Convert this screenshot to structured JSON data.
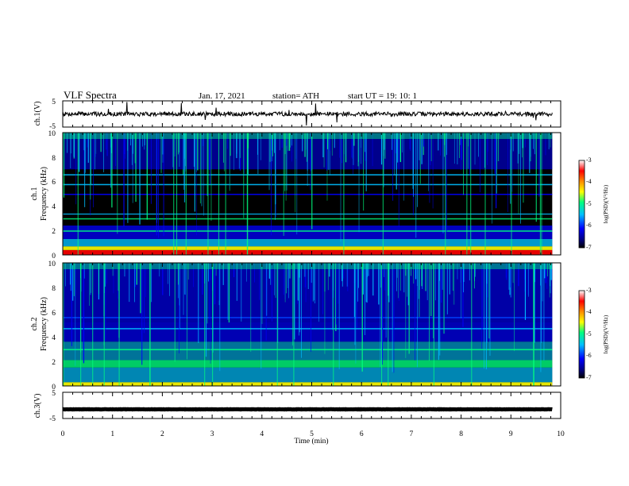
{
  "header": {
    "title": "VLF Spectra",
    "date": "Jan. 17, 2021",
    "station": "station= ATH",
    "start": "start  UT =   19: 10: 1"
  },
  "chart_data": [
    {
      "type": "line",
      "panel": "ch1-waveform",
      "ylabel": "ch.1(V)",
      "ylim": [
        -5,
        5
      ],
      "y_ticks": [
        "5",
        "-5"
      ],
      "xlim": [
        0,
        10
      ],
      "baseline": 0,
      "line_color": "#000000"
    },
    {
      "type": "heatmap",
      "panel": "ch1-spectrogram",
      "ylabel_line1": "ch.1",
      "ylabel_line2": "Frequency (kHz)",
      "ylim": [
        0,
        10
      ],
      "y_ticks": [
        "0",
        "2",
        "4",
        "6",
        "8",
        "10"
      ],
      "xlim": [
        0,
        9.83
      ],
      "colorbar": {
        "label": "log(PSD)(V²/Hz)",
        "range": [
          -7,
          -3
        ],
        "ticks": [
          "-7",
          "-6",
          "-5",
          "-4",
          "-3"
        ]
      }
    },
    {
      "type": "heatmap",
      "panel": "ch2-spectrogram",
      "ylabel_line1": "ch.2",
      "ylabel_line2": "Frequency (kHz)",
      "ylim": [
        0,
        10
      ],
      "y_ticks": [
        "0",
        "2",
        "4",
        "6",
        "8",
        "10"
      ],
      "xlim": [
        0,
        9.83
      ],
      "colorbar": {
        "label": "log(PSD)(V²/Hz)",
        "range": [
          -7,
          -3
        ],
        "ticks": [
          "-7",
          "-6",
          "-5",
          "-4",
          "-3"
        ]
      }
    },
    {
      "type": "line",
      "panel": "ch3-waveform",
      "ylabel": "ch.3(V)",
      "ylim": [
        -5,
        5
      ],
      "y_ticks": [
        "5",
        "-5"
      ],
      "xlim": [
        0,
        10
      ],
      "baseline": -1.5,
      "line_color": "#000000"
    }
  ],
  "x_axis": {
    "label": "Time (min)",
    "range": [
      0,
      10
    ],
    "ticks": [
      "0",
      "1",
      "2",
      "3",
      "4",
      "5",
      "6",
      "7",
      "8",
      "9",
      "10"
    ]
  },
  "colors": {
    "spectrogram_background": "#000000",
    "colormap": [
      "#000000",
      "#00008b",
      "#0000ff",
      "#00bfff",
      "#00ff7f",
      "#ffff00",
      "#ff8c00",
      "#ff0000",
      "#ffffff"
    ]
  }
}
